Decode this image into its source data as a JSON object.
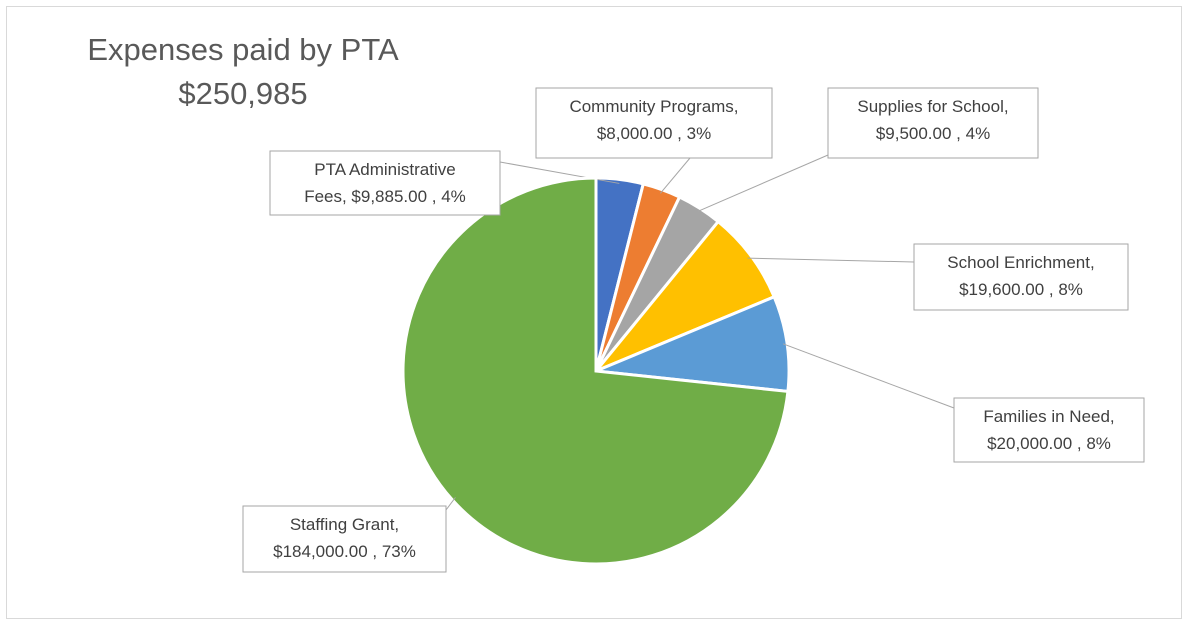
{
  "chart_data": {
    "type": "pie",
    "title": "Expenses paid by PTA",
    "subtitle": "$250,985",
    "colors": [
      "#4472c4",
      "#ed7d31",
      "#a5a5a5",
      "#ffc000",
      "#5b9bd5",
      "#70ad47"
    ],
    "slices": [
      {
        "label_lines": [
          "PTA Administrative",
          "Fees,  $9,885.00 , 4%"
        ],
        "value": 9885,
        "percent": 4,
        "color": "#4472c4"
      },
      {
        "label_lines": [
          "Community Programs,",
          "$8,000.00 , 3%"
        ],
        "value": 8000,
        "percent": 3,
        "color": "#ed7d31"
      },
      {
        "label_lines": [
          "Supplies for School,",
          "$9,500.00 , 4%"
        ],
        "value": 9500,
        "percent": 4,
        "color": "#a5a5a5"
      },
      {
        "label_lines": [
          "School Enrichment,",
          "$19,600.00 , 8%"
        ],
        "value": 19600,
        "percent": 8,
        "color": "#ffc000"
      },
      {
        "label_lines": [
          "Families in Need,",
          "$20,000.00 , 8%"
        ],
        "value": 20000,
        "percent": 8,
        "color": "#5b9bd5"
      },
      {
        "label_lines": [
          "Staffing Grant,",
          "$184,000.00 , 73%"
        ],
        "value": 184000,
        "percent": 73,
        "color": "#70ad47"
      }
    ],
    "legend": false
  }
}
